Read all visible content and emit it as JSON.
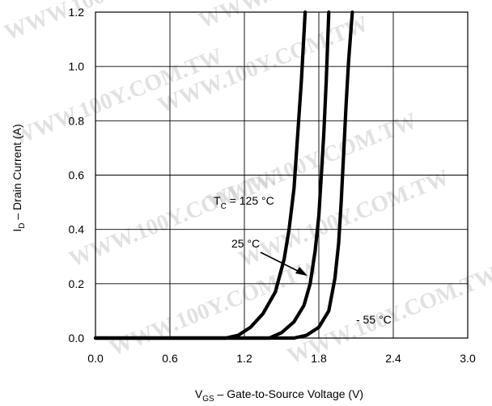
{
  "chart_data": {
    "type": "line",
    "title": "",
    "xlabel": {
      "main": "V",
      "sub": "GS",
      "rest": " – Gate-to-Source Voltage (V)"
    },
    "ylabel": {
      "main": "I",
      "sub": "D",
      "rest": " – Drain Current (A)"
    },
    "xlim": [
      0.0,
      3.0
    ],
    "ylim": [
      0.0,
      1.2
    ],
    "x_ticks": [
      "0.0",
      "0.6",
      "1.2",
      "1.8",
      "2.4",
      "3.0"
    ],
    "y_ticks": [
      "0.0",
      "0.2",
      "0.4",
      "0.6",
      "0.8",
      "1.0",
      "1.2"
    ],
    "grid": true,
    "series": [
      {
        "name": "T_C = 125 °C",
        "points": [
          [
            0.0,
            0.0
          ],
          [
            1.05,
            0.0
          ],
          [
            1.15,
            0.01
          ],
          [
            1.25,
            0.04
          ],
          [
            1.35,
            0.09
          ],
          [
            1.45,
            0.17
          ],
          [
            1.52,
            0.29
          ],
          [
            1.56,
            0.4
          ],
          [
            1.6,
            0.55
          ],
          [
            1.63,
            0.75
          ],
          [
            1.66,
            0.95
          ],
          [
            1.69,
            1.2
          ]
        ]
      },
      {
        "name": "25 °C",
        "points": [
          [
            0.0,
            0.0
          ],
          [
            1.4,
            0.0
          ],
          [
            1.5,
            0.02
          ],
          [
            1.6,
            0.06
          ],
          [
            1.68,
            0.12
          ],
          [
            1.73,
            0.2
          ],
          [
            1.77,
            0.32
          ],
          [
            1.8,
            0.45
          ],
          [
            1.82,
            0.6
          ],
          [
            1.84,
            0.75
          ],
          [
            1.86,
            0.95
          ],
          [
            1.88,
            1.2
          ]
        ]
      },
      {
        "name": "- 55 °C",
        "points": [
          [
            0.0,
            0.0
          ],
          [
            1.6,
            0.0
          ],
          [
            1.7,
            0.01
          ],
          [
            1.8,
            0.04
          ],
          [
            1.88,
            0.1
          ],
          [
            1.93,
            0.22
          ],
          [
            1.96,
            0.35
          ],
          [
            1.98,
            0.5
          ],
          [
            2.0,
            0.68
          ],
          [
            2.02,
            0.86
          ],
          [
            2.04,
            1.02
          ],
          [
            2.07,
            1.2
          ]
        ]
      }
    ],
    "annotations": {
      "tc_label": {
        "main": "T",
        "sub": "C",
        "rest": " = 125 °C"
      },
      "t25_label": "25 °C",
      "t55_label": "- 55 °C"
    },
    "watermark": "WWW.100Y.COM.TW"
  }
}
